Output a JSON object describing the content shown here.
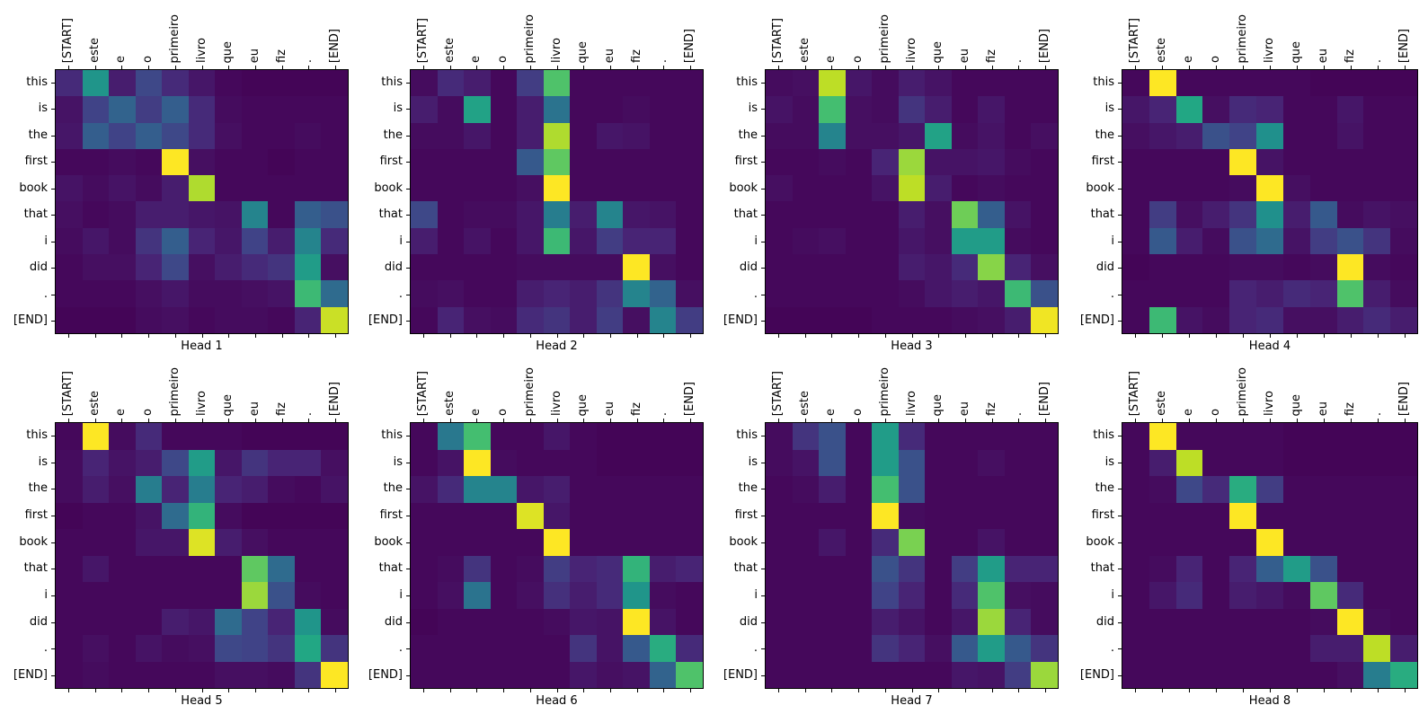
{
  "figure": {
    "background_color": "#ffffff",
    "text_color": "#000000"
  },
  "chart_data": {
    "type": "heatmap",
    "colormap": "viridis",
    "colormap_min_color": "#440154",
    "colormap_max_color": "#fde725",
    "value_range": [
      0,
      1
    ],
    "grid": false,
    "layout": "2 rows x 4 columns of attention-matrix subplots; x tick labels rotated 90 on top, y tick labels on left, title below each subplot",
    "x_labels": [
      "[START]",
      "este",
      "e",
      "o",
      "primeiro",
      "livro",
      "que",
      "eu",
      "fiz",
      ".",
      "[END]"
    ],
    "y_labels": [
      "this",
      "is",
      "the",
      "first",
      "book",
      "that",
      "i",
      "did",
      ".",
      "[END]"
    ],
    "heads": [
      {
        "title": "Head 1",
        "matrix": [
          [
            0.12,
            0.52,
            0.08,
            0.22,
            0.12,
            0.06,
            0.02,
            0.01,
            0.01,
            0.01,
            0.01
          ],
          [
            0.05,
            0.2,
            0.32,
            0.18,
            0.3,
            0.12,
            0.03,
            0.02,
            0.02,
            0.02,
            0.02
          ],
          [
            0.06,
            0.3,
            0.2,
            0.3,
            0.22,
            0.12,
            0.04,
            0.02,
            0.02,
            0.03,
            0.02
          ],
          [
            0.02,
            0.02,
            0.03,
            0.02,
            1.0,
            0.04,
            0.02,
            0.02,
            0.01,
            0.02,
            0.02
          ],
          [
            0.05,
            0.03,
            0.05,
            0.03,
            0.08,
            0.88,
            0.02,
            0.02,
            0.02,
            0.02,
            0.02
          ],
          [
            0.04,
            0.02,
            0.03,
            0.08,
            0.08,
            0.06,
            0.05,
            0.45,
            0.02,
            0.3,
            0.25
          ],
          [
            0.03,
            0.06,
            0.03,
            0.15,
            0.3,
            0.1,
            0.06,
            0.2,
            0.08,
            0.45,
            0.12
          ],
          [
            0.02,
            0.04,
            0.04,
            0.1,
            0.22,
            0.04,
            0.08,
            0.12,
            0.15,
            0.55,
            0.04
          ],
          [
            0.02,
            0.02,
            0.02,
            0.04,
            0.06,
            0.03,
            0.03,
            0.04,
            0.05,
            0.68,
            0.35
          ],
          [
            0.01,
            0.01,
            0.01,
            0.03,
            0.04,
            0.02,
            0.03,
            0.03,
            0.02,
            0.1,
            0.92
          ]
        ]
      },
      {
        "title": "Head 2",
        "matrix": [
          [
            0.03,
            0.12,
            0.08,
            0.02,
            0.18,
            0.72,
            0.02,
            0.02,
            0.02,
            0.02,
            0.02
          ],
          [
            0.08,
            0.03,
            0.58,
            0.02,
            0.08,
            0.38,
            0.02,
            0.02,
            0.03,
            0.02,
            0.02
          ],
          [
            0.03,
            0.03,
            0.06,
            0.02,
            0.08,
            0.88,
            0.02,
            0.06,
            0.05,
            0.02,
            0.02
          ],
          [
            0.02,
            0.02,
            0.02,
            0.02,
            0.28,
            0.75,
            0.02,
            0.02,
            0.02,
            0.02,
            0.02
          ],
          [
            0.02,
            0.02,
            0.02,
            0.02,
            0.04,
            1.0,
            0.02,
            0.02,
            0.02,
            0.02,
            0.02
          ],
          [
            0.22,
            0.02,
            0.03,
            0.03,
            0.06,
            0.42,
            0.08,
            0.45,
            0.06,
            0.05,
            0.02
          ],
          [
            0.08,
            0.02,
            0.05,
            0.02,
            0.06,
            0.68,
            0.06,
            0.18,
            0.1,
            0.1,
            0.02
          ],
          [
            0.02,
            0.02,
            0.02,
            0.02,
            0.03,
            0.03,
            0.03,
            0.03,
            1.0,
            0.04,
            0.02
          ],
          [
            0.03,
            0.04,
            0.02,
            0.02,
            0.08,
            0.1,
            0.08,
            0.15,
            0.45,
            0.32,
            0.04
          ],
          [
            0.02,
            0.1,
            0.04,
            0.03,
            0.12,
            0.15,
            0.08,
            0.18,
            0.04,
            0.45,
            0.18
          ]
        ]
      },
      {
        "title": "Head 3",
        "matrix": [
          [
            0.03,
            0.04,
            0.9,
            0.06,
            0.03,
            0.08,
            0.05,
            0.02,
            0.02,
            0.02,
            0.02
          ],
          [
            0.05,
            0.03,
            0.7,
            0.04,
            0.03,
            0.15,
            0.08,
            0.02,
            0.06,
            0.02,
            0.02
          ],
          [
            0.03,
            0.03,
            0.45,
            0.04,
            0.04,
            0.06,
            0.58,
            0.03,
            0.05,
            0.02,
            0.04
          ],
          [
            0.02,
            0.02,
            0.03,
            0.02,
            0.1,
            0.85,
            0.05,
            0.05,
            0.06,
            0.03,
            0.02
          ],
          [
            0.04,
            0.02,
            0.02,
            0.02,
            0.05,
            0.9,
            0.08,
            0.02,
            0.03,
            0.02,
            0.02
          ],
          [
            0.02,
            0.02,
            0.02,
            0.02,
            0.02,
            0.08,
            0.04,
            0.78,
            0.3,
            0.05,
            0.02
          ],
          [
            0.02,
            0.03,
            0.04,
            0.02,
            0.02,
            0.06,
            0.04,
            0.55,
            0.55,
            0.03,
            0.02
          ],
          [
            0.02,
            0.02,
            0.02,
            0.02,
            0.02,
            0.08,
            0.06,
            0.12,
            0.82,
            0.1,
            0.04
          ],
          [
            0.02,
            0.02,
            0.02,
            0.02,
            0.02,
            0.03,
            0.06,
            0.08,
            0.06,
            0.68,
            0.25
          ],
          [
            0.01,
            0.01,
            0.01,
            0.01,
            0.02,
            0.02,
            0.02,
            0.03,
            0.04,
            0.08,
            0.98
          ]
        ]
      },
      {
        "title": "Head 4",
        "matrix": [
          [
            0.02,
            1.0,
            0.02,
            0.02,
            0.02,
            0.02,
            0.02,
            0.01,
            0.01,
            0.01,
            0.01
          ],
          [
            0.06,
            0.1,
            0.6,
            0.04,
            0.12,
            0.1,
            0.02,
            0.02,
            0.06,
            0.02,
            0.02
          ],
          [
            0.04,
            0.06,
            0.08,
            0.25,
            0.2,
            0.5,
            0.02,
            0.02,
            0.05,
            0.02,
            0.02
          ],
          [
            0.02,
            0.02,
            0.02,
            0.02,
            1.0,
            0.05,
            0.02,
            0.02,
            0.02,
            0.02,
            0.02
          ],
          [
            0.02,
            0.02,
            0.02,
            0.02,
            0.03,
            1.0,
            0.04,
            0.02,
            0.02,
            0.02,
            0.02
          ],
          [
            0.02,
            0.18,
            0.04,
            0.08,
            0.15,
            0.5,
            0.08,
            0.28,
            0.03,
            0.05,
            0.04
          ],
          [
            0.02,
            0.28,
            0.08,
            0.03,
            0.25,
            0.35,
            0.05,
            0.18,
            0.25,
            0.15,
            0.03
          ],
          [
            0.01,
            0.02,
            0.02,
            0.02,
            0.03,
            0.03,
            0.02,
            0.03,
            1.0,
            0.03,
            0.02
          ],
          [
            0.02,
            0.02,
            0.02,
            0.02,
            0.1,
            0.08,
            0.12,
            0.1,
            0.72,
            0.08,
            0.03
          ],
          [
            0.02,
            0.68,
            0.05,
            0.03,
            0.1,
            0.12,
            0.04,
            0.04,
            0.08,
            0.12,
            0.08
          ]
        ]
      },
      {
        "title": "Head 5",
        "matrix": [
          [
            0.02,
            1.0,
            0.03,
            0.12,
            0.02,
            0.02,
            0.02,
            0.01,
            0.01,
            0.01,
            0.01
          ],
          [
            0.03,
            0.1,
            0.05,
            0.08,
            0.22,
            0.55,
            0.06,
            0.15,
            0.1,
            0.1,
            0.04
          ],
          [
            0.03,
            0.08,
            0.04,
            0.42,
            0.1,
            0.42,
            0.1,
            0.08,
            0.03,
            0.02,
            0.05
          ],
          [
            0.01,
            0.02,
            0.02,
            0.05,
            0.35,
            0.65,
            0.03,
            0.01,
            0.01,
            0.01,
            0.01
          ],
          [
            0.02,
            0.02,
            0.02,
            0.06,
            0.06,
            0.95,
            0.08,
            0.04,
            0.02,
            0.02,
            0.02
          ],
          [
            0.02,
            0.06,
            0.02,
            0.02,
            0.02,
            0.02,
            0.02,
            0.75,
            0.35,
            0.02,
            0.02
          ],
          [
            0.02,
            0.02,
            0.02,
            0.02,
            0.02,
            0.02,
            0.02,
            0.85,
            0.25,
            0.03,
            0.02
          ],
          [
            0.02,
            0.02,
            0.02,
            0.02,
            0.08,
            0.06,
            0.35,
            0.2,
            0.1,
            0.52,
            0.03
          ],
          [
            0.02,
            0.04,
            0.02,
            0.05,
            0.03,
            0.04,
            0.22,
            0.2,
            0.15,
            0.6,
            0.15
          ],
          [
            0.02,
            0.03,
            0.02,
            0.02,
            0.02,
            0.02,
            0.04,
            0.04,
            0.03,
            0.15,
            1.0
          ]
        ]
      },
      {
        "title": "Head 6",
        "matrix": [
          [
            0.02,
            0.4,
            0.7,
            0.02,
            0.02,
            0.06,
            0.02,
            0.01,
            0.01,
            0.01,
            0.01
          ],
          [
            0.02,
            0.05,
            1.0,
            0.03,
            0.02,
            0.02,
            0.02,
            0.01,
            0.01,
            0.01,
            0.01
          ],
          [
            0.05,
            0.12,
            0.45,
            0.45,
            0.06,
            0.08,
            0.02,
            0.02,
            0.02,
            0.02,
            0.02
          ],
          [
            0.02,
            0.02,
            0.02,
            0.02,
            0.95,
            0.06,
            0.02,
            0.02,
            0.02,
            0.02,
            0.02
          ],
          [
            0.02,
            0.02,
            0.02,
            0.02,
            0.02,
            1.0,
            0.02,
            0.02,
            0.02,
            0.02,
            0.02
          ],
          [
            0.02,
            0.03,
            0.15,
            0.02,
            0.03,
            0.18,
            0.1,
            0.12,
            0.65,
            0.08,
            0.1
          ],
          [
            0.02,
            0.04,
            0.38,
            0.02,
            0.04,
            0.14,
            0.08,
            0.12,
            0.52,
            0.03,
            0.02
          ],
          [
            0.01,
            0.02,
            0.02,
            0.02,
            0.02,
            0.03,
            0.06,
            0.05,
            1.0,
            0.05,
            0.02
          ],
          [
            0.02,
            0.02,
            0.02,
            0.02,
            0.02,
            0.02,
            0.15,
            0.05,
            0.28,
            0.62,
            0.12
          ],
          [
            0.02,
            0.02,
            0.02,
            0.02,
            0.02,
            0.02,
            0.06,
            0.04,
            0.05,
            0.32,
            0.72
          ]
        ]
      },
      {
        "title": "Head 7",
        "matrix": [
          [
            0.03,
            0.15,
            0.25,
            0.02,
            0.55,
            0.12,
            0.02,
            0.02,
            0.02,
            0.02,
            0.02
          ],
          [
            0.03,
            0.05,
            0.25,
            0.02,
            0.55,
            0.25,
            0.02,
            0.02,
            0.04,
            0.02,
            0.02
          ],
          [
            0.02,
            0.03,
            0.08,
            0.02,
            0.7,
            0.25,
            0.02,
            0.02,
            0.02,
            0.02,
            0.02
          ],
          [
            0.02,
            0.02,
            0.02,
            0.02,
            1.0,
            0.03,
            0.02,
            0.02,
            0.02,
            0.02,
            0.02
          ],
          [
            0.02,
            0.02,
            0.06,
            0.02,
            0.12,
            0.8,
            0.02,
            0.02,
            0.05,
            0.02,
            0.02
          ],
          [
            0.02,
            0.02,
            0.02,
            0.02,
            0.25,
            0.15,
            0.02,
            0.18,
            0.55,
            0.1,
            0.1
          ],
          [
            0.02,
            0.02,
            0.02,
            0.02,
            0.2,
            0.1,
            0.02,
            0.12,
            0.72,
            0.04,
            0.03
          ],
          [
            0.02,
            0.02,
            0.02,
            0.02,
            0.08,
            0.05,
            0.02,
            0.06,
            0.85,
            0.1,
            0.03
          ],
          [
            0.02,
            0.02,
            0.02,
            0.02,
            0.15,
            0.1,
            0.04,
            0.28,
            0.55,
            0.28,
            0.15
          ],
          [
            0.02,
            0.02,
            0.02,
            0.02,
            0.02,
            0.02,
            0.02,
            0.06,
            0.05,
            0.18,
            0.85
          ]
        ]
      },
      {
        "title": "Head 8",
        "matrix": [
          [
            0.02,
            1.0,
            0.02,
            0.02,
            0.02,
            0.02,
            0.01,
            0.01,
            0.01,
            0.01,
            0.01
          ],
          [
            0.02,
            0.08,
            0.9,
            0.02,
            0.02,
            0.02,
            0.01,
            0.01,
            0.01,
            0.01,
            0.01
          ],
          [
            0.02,
            0.03,
            0.22,
            0.12,
            0.62,
            0.18,
            0.02,
            0.02,
            0.02,
            0.02,
            0.02
          ],
          [
            0.02,
            0.02,
            0.02,
            0.02,
            1.0,
            0.02,
            0.02,
            0.02,
            0.02,
            0.02,
            0.02
          ],
          [
            0.02,
            0.02,
            0.02,
            0.02,
            0.02,
            1.0,
            0.02,
            0.02,
            0.02,
            0.02,
            0.02
          ],
          [
            0.02,
            0.03,
            0.1,
            0.02,
            0.1,
            0.3,
            0.55,
            0.25,
            0.02,
            0.02,
            0.02
          ],
          [
            0.02,
            0.06,
            0.12,
            0.02,
            0.08,
            0.06,
            0.03,
            0.75,
            0.12,
            0.02,
            0.02
          ],
          [
            0.02,
            0.02,
            0.02,
            0.02,
            0.02,
            0.02,
            0.02,
            0.03,
            1.0,
            0.03,
            0.02
          ],
          [
            0.02,
            0.02,
            0.02,
            0.02,
            0.02,
            0.02,
            0.02,
            0.08,
            0.08,
            0.9,
            0.08
          ],
          [
            0.02,
            0.02,
            0.02,
            0.02,
            0.02,
            0.02,
            0.02,
            0.02,
            0.04,
            0.42,
            0.62
          ]
        ]
      }
    ]
  }
}
